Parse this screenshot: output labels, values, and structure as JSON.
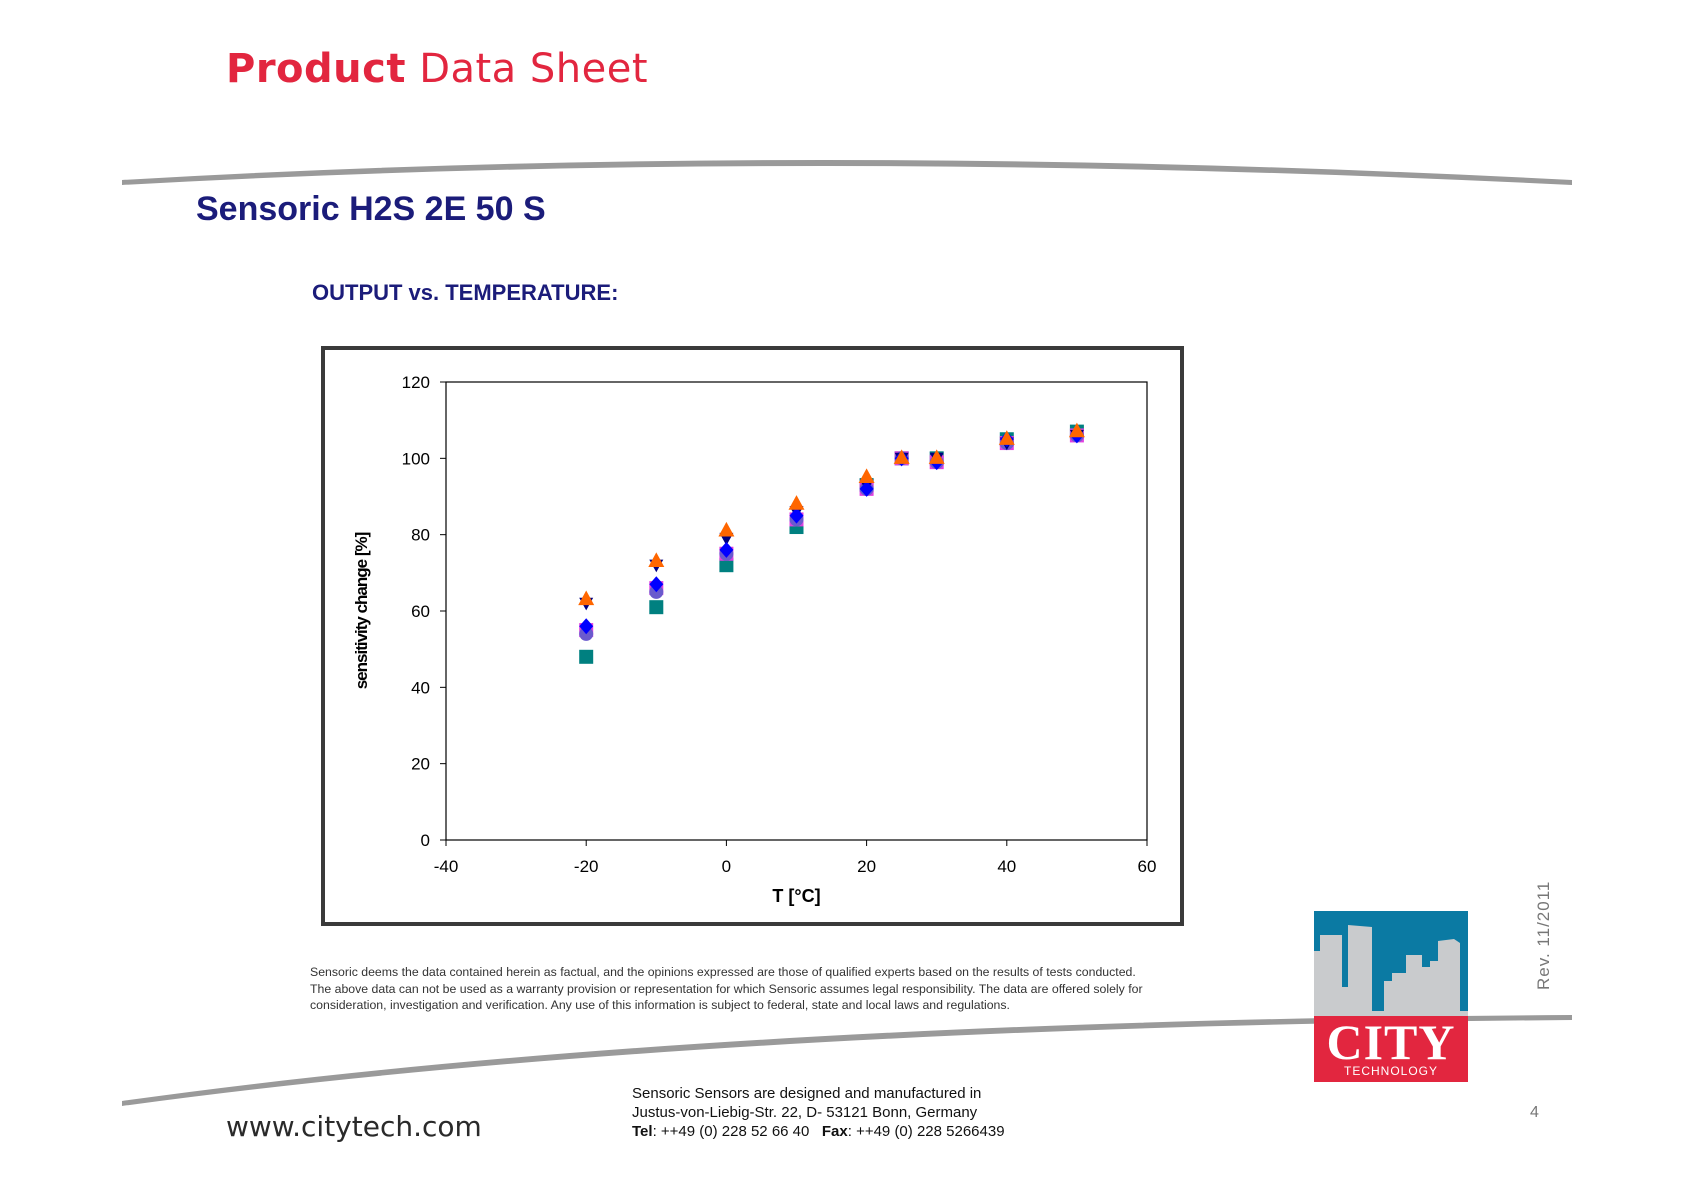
{
  "header": {
    "brand_bold": "Product",
    "brand_light": "Data Sheet"
  },
  "product_name": "Sensoric H2S 2E 50 S",
  "section_heading": "OUTPUT vs. TEMPERATURE:",
  "chart_data": {
    "type": "scatter",
    "title": "",
    "xlabel": "T [°C]",
    "ylabel": "sensitivity change [%]",
    "xlim": [
      -40,
      60
    ],
    "ylim": [
      0,
      120
    ],
    "xticks": [
      -40,
      -20,
      0,
      20,
      40,
      60
    ],
    "yticks": [
      0,
      20,
      40,
      60,
      80,
      100,
      120
    ],
    "grid": false,
    "legend": "none",
    "series": [
      {
        "marker": "square",
        "color": "#008080",
        "x": [
          -20,
          -10,
          0,
          10,
          20,
          25,
          30,
          40,
          50
        ],
        "y": [
          48,
          61,
          72,
          82,
          93,
          100,
          100,
          105,
          107
        ]
      },
      {
        "marker": "square",
        "color": "#e040e0",
        "x": [
          -20,
          -10,
          0,
          10,
          20,
          25,
          30,
          40,
          50
        ],
        "y": [
          55,
          66,
          75,
          84,
          92,
          100,
          99,
          104,
          106
        ]
      },
      {
        "marker": "circle",
        "color": "#6a5acd",
        "x": [
          -20,
          -10,
          0,
          10,
          20,
          25,
          30,
          40,
          50
        ],
        "y": [
          54,
          65,
          75,
          84,
          92,
          100,
          99,
          104,
          106
        ]
      },
      {
        "marker": "triangle-down",
        "color": "#000080",
        "x": [
          -20,
          -10,
          0,
          10,
          20,
          25,
          30,
          40,
          50
        ],
        "y": [
          62,
          72,
          79,
          86,
          93,
          100,
          100,
          104,
          106
        ]
      },
      {
        "marker": "diamond",
        "color": "#0000ff",
        "x": [
          -20,
          -10,
          0,
          10,
          20,
          25,
          30,
          40,
          50
        ],
        "y": [
          56,
          67,
          76,
          85,
          92,
          100,
          99,
          105,
          106
        ]
      },
      {
        "marker": "triangle-up",
        "color": "#ff6600",
        "x": [
          -20,
          -10,
          0,
          10,
          20,
          25,
          30,
          40,
          50
        ],
        "y": [
          63,
          73,
          81,
          88,
          95,
          100,
          100,
          105,
          107
        ]
      }
    ]
  },
  "disclaimer": [
    "Sensoric deems the data contained herein as factual, and the opinions expressed are those of qualified experts based on the results of tests conducted.",
    "The above data can not be used as a warranty provision or representation for which Sensoric assumes legal responsibility. The data are offered solely for",
    "consideration, investigation and verification. Any use of this information is subject to federal, state and local laws and regulations."
  ],
  "footer": {
    "website": "www.citytech.com",
    "address_line1": "Sensoric Sensors are designed and manufactured in",
    "address_line2": "Justus-von-Liebig-Str. 22, D- 53121 Bonn, Germany",
    "tel_label": "Tel",
    "tel_value": ": ++49 (0) 228 52 66 40",
    "fax_label": "Fax",
    "fax_value": ": ++49 (0) 228 5266439",
    "revision": "Rev.  11/2011",
    "page_number": "4"
  },
  "logo": {
    "name": "CITY",
    "subtitle": "TECHNOLOGY"
  },
  "colors": {
    "brand_red": "#e2263f",
    "title_navy": "#1b1c7a",
    "swoosh_grey": "#9a9a9a"
  }
}
